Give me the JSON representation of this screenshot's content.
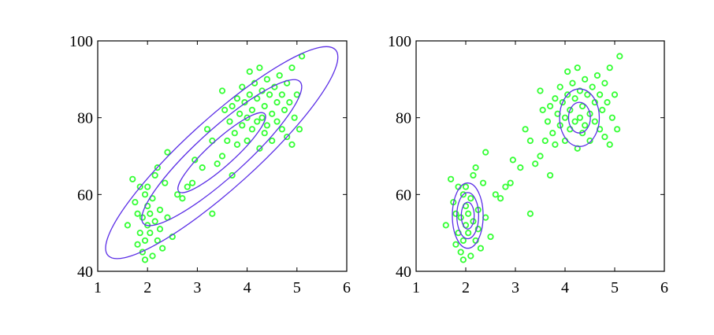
{
  "colors": {
    "points": "#33ff33",
    "contours": "#5b2ee6",
    "axes": "#000000",
    "background": "#ffffff"
  },
  "chart_data": [
    {
      "type": "scatter",
      "title": "",
      "xlabel": "",
      "ylabel": "",
      "xlim": [
        1,
        6
      ],
      "ylim": [
        40,
        100
      ],
      "xticks": [
        1,
        2,
        3,
        4,
        5,
        6
      ],
      "yticks": [
        40,
        60,
        80,
        100
      ],
      "grid": false,
      "marker": "open-circle",
      "overlay": "single-gaussian-contours",
      "points": [
        [
          1.6,
          52
        ],
        [
          1.7,
          64
        ],
        [
          1.75,
          58
        ],
        [
          1.8,
          55
        ],
        [
          1.8,
          47
        ],
        [
          1.85,
          62
        ],
        [
          1.85,
          50
        ],
        [
          1.9,
          54
        ],
        [
          1.9,
          45
        ],
        [
          1.95,
          60
        ],
        [
          1.95,
          48
        ],
        [
          2.0,
          52
        ],
        [
          2.0,
          57
        ],
        [
          2.0,
          62
        ],
        [
          2.05,
          50
        ],
        [
          2.05,
          55
        ],
        [
          2.1,
          44
        ],
        [
          2.1,
          59
        ],
        [
          2.15,
          53
        ],
        [
          2.15,
          65
        ],
        [
          2.2,
          48
        ],
        [
          2.2,
          67
        ],
        [
          2.25,
          56
        ],
        [
          2.3,
          46
        ],
        [
          2.35,
          63
        ],
        [
          2.4,
          71
        ],
        [
          2.4,
          54
        ],
        [
          2.5,
          49
        ],
        [
          2.6,
          60
        ],
        [
          2.7,
          59
        ],
        [
          2.8,
          62
        ],
        [
          2.9,
          63
        ],
        [
          2.95,
          69
        ],
        [
          3.1,
          67
        ],
        [
          3.3,
          55
        ],
        [
          3.4,
          68
        ],
        [
          3.5,
          70
        ],
        [
          3.5,
          87
        ],
        [
          3.6,
          74
        ],
        [
          3.65,
          79
        ],
        [
          3.7,
          83
        ],
        [
          3.7,
          65
        ],
        [
          3.75,
          76
        ],
        [
          3.8,
          85
        ],
        [
          3.8,
          73
        ],
        [
          3.85,
          81
        ],
        [
          3.9,
          78
        ],
        [
          3.9,
          88
        ],
        [
          3.95,
          84
        ],
        [
          4.0,
          80
        ],
        [
          4.0,
          74
        ],
        [
          4.05,
          92
        ],
        [
          4.05,
          86
        ],
        [
          4.1,
          77
        ],
        [
          4.1,
          82
        ],
        [
          4.15,
          89
        ],
        [
          4.2,
          79
        ],
        [
          4.2,
          85
        ],
        [
          4.25,
          93
        ],
        [
          4.25,
          72
        ],
        [
          4.3,
          80
        ],
        [
          4.3,
          87
        ],
        [
          4.35,
          76
        ],
        [
          4.35,
          83
        ],
        [
          4.4,
          90
        ],
        [
          4.4,
          78
        ],
        [
          4.45,
          86
        ],
        [
          4.5,
          81
        ],
        [
          4.5,
          74
        ],
        [
          4.55,
          88
        ],
        [
          4.6,
          79
        ],
        [
          4.6,
          84
        ],
        [
          4.65,
          91
        ],
        [
          4.7,
          77
        ],
        [
          4.7,
          86
        ],
        [
          4.75,
          82
        ],
        [
          4.8,
          89
        ],
        [
          4.8,
          75
        ],
        [
          4.85,
          84
        ],
        [
          4.9,
          93
        ],
        [
          4.95,
          80
        ],
        [
          5.0,
          86
        ],
        [
          5.05,
          77
        ],
        [
          5.1,
          96
        ],
        [
          3.2,
          77
        ],
        [
          3.3,
          74
        ],
        [
          3.55,
          82
        ],
        [
          4.9,
          73
        ],
        [
          2.25,
          51
        ],
        [
          1.95,
          43
        ]
      ],
      "contours": [
        {
          "center": [
            3.49,
            70.9
          ],
          "a": 0.85,
          "b": 0.19
        },
        {
          "center": [
            3.49,
            70.9
          ],
          "a": 1.55,
          "b": 0.35
        },
        {
          "center": [
            3.49,
            70.9
          ],
          "a": 2.25,
          "b": 0.51
        }
      ]
    },
    {
      "type": "scatter",
      "title": "",
      "xlabel": "",
      "ylabel": "",
      "xlim": [
        1,
        6
      ],
      "ylim": [
        40,
        100
      ],
      "xticks": [
        1,
        2,
        3,
        4,
        5,
        6
      ],
      "yticks": [
        40,
        60,
        80,
        100
      ],
      "grid": false,
      "marker": "open-circle",
      "overlay": "mixture-of-two-gaussians-contours",
      "points": [
        [
          1.6,
          52
        ],
        [
          1.7,
          64
        ],
        [
          1.75,
          58
        ],
        [
          1.8,
          55
        ],
        [
          1.8,
          47
        ],
        [
          1.85,
          62
        ],
        [
          1.85,
          50
        ],
        [
          1.9,
          54
        ],
        [
          1.9,
          45
        ],
        [
          1.95,
          60
        ],
        [
          1.95,
          48
        ],
        [
          2.0,
          52
        ],
        [
          2.0,
          57
        ],
        [
          2.0,
          62
        ],
        [
          2.05,
          50
        ],
        [
          2.05,
          55
        ],
        [
          2.1,
          44
        ],
        [
          2.1,
          59
        ],
        [
          2.15,
          53
        ],
        [
          2.15,
          65
        ],
        [
          2.2,
          48
        ],
        [
          2.2,
          67
        ],
        [
          2.25,
          56
        ],
        [
          2.3,
          46
        ],
        [
          2.35,
          63
        ],
        [
          2.4,
          71
        ],
        [
          2.4,
          54
        ],
        [
          2.5,
          49
        ],
        [
          2.6,
          60
        ],
        [
          2.7,
          59
        ],
        [
          2.8,
          62
        ],
        [
          2.9,
          63
        ],
        [
          2.95,
          69
        ],
        [
          3.1,
          67
        ],
        [
          3.3,
          55
        ],
        [
          3.4,
          68
        ],
        [
          3.5,
          70
        ],
        [
          3.5,
          87
        ],
        [
          3.6,
          74
        ],
        [
          3.65,
          79
        ],
        [
          3.7,
          83
        ],
        [
          3.7,
          65
        ],
        [
          3.75,
          76
        ],
        [
          3.8,
          85
        ],
        [
          3.8,
          73
        ],
        [
          3.85,
          81
        ],
        [
          3.9,
          78
        ],
        [
          3.9,
          88
        ],
        [
          3.95,
          84
        ],
        [
          4.0,
          80
        ],
        [
          4.0,
          74
        ],
        [
          4.05,
          92
        ],
        [
          4.05,
          86
        ],
        [
          4.1,
          77
        ],
        [
          4.1,
          82
        ],
        [
          4.15,
          89
        ],
        [
          4.2,
          79
        ],
        [
          4.2,
          85
        ],
        [
          4.25,
          93
        ],
        [
          4.25,
          72
        ],
        [
          4.3,
          80
        ],
        [
          4.3,
          87
        ],
        [
          4.35,
          76
        ],
        [
          4.35,
          83
        ],
        [
          4.4,
          90
        ],
        [
          4.4,
          78
        ],
        [
          4.45,
          86
        ],
        [
          4.5,
          81
        ],
        [
          4.5,
          74
        ],
        [
          4.55,
          88
        ],
        [
          4.6,
          79
        ],
        [
          4.6,
          84
        ],
        [
          4.65,
          91
        ],
        [
          4.7,
          77
        ],
        [
          4.7,
          86
        ],
        [
          4.75,
          82
        ],
        [
          4.8,
          89
        ],
        [
          4.8,
          75
        ],
        [
          4.85,
          84
        ],
        [
          4.9,
          93
        ],
        [
          4.95,
          80
        ],
        [
          5.0,
          86
        ],
        [
          5.05,
          77
        ],
        [
          5.1,
          96
        ],
        [
          3.2,
          77
        ],
        [
          3.3,
          74
        ],
        [
          3.55,
          82
        ],
        [
          4.9,
          73
        ],
        [
          2.25,
          51
        ],
        [
          1.95,
          43
        ]
      ],
      "contours": [
        {
          "center": [
            2.04,
            54.5
          ],
          "a": 0.13,
          "b": 3.5
        },
        {
          "center": [
            2.04,
            54.5
          ],
          "a": 0.22,
          "b": 6.0
        },
        {
          "center": [
            2.04,
            54.5
          ],
          "a": 0.31,
          "b": 8.5
        },
        {
          "center": [
            4.29,
            80.0
          ],
          "a": 0.22,
          "b": 4.0
        },
        {
          "center": [
            4.29,
            80.0
          ],
          "a": 0.4,
          "b": 7.5
        }
      ]
    }
  ]
}
